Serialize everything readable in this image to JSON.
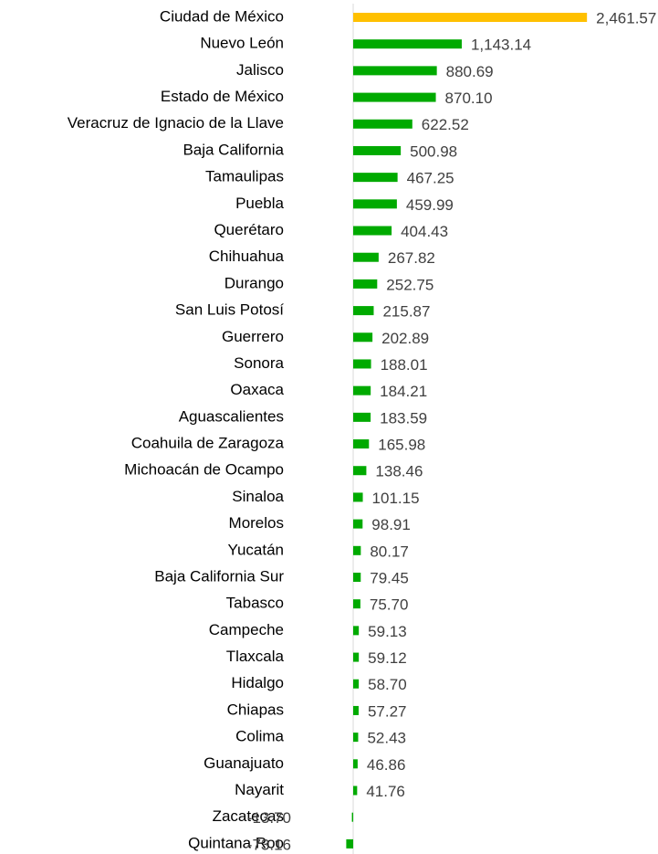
{
  "chart_data": {
    "type": "hbar",
    "categories": [
      "Ciudad de México",
      "Nuevo León",
      "Jalisco",
      "Estado de México",
      "Veracruz de Ignacio de la Llave",
      "Baja California",
      "Tamaulipas",
      "Puebla",
      "Querétaro",
      "Chihuahua",
      "Durango",
      "San Luis Potosí",
      "Guerrero",
      "Sonora",
      "Oaxaca",
      "Aguascalientes",
      "Coahuila de Zaragoza",
      "Michoacán de Ocampo",
      "Sinaloa",
      "Morelos",
      "Yucatán",
      "Baja California Sur",
      "Tabasco",
      "Campeche",
      "Tlaxcala",
      "Hidalgo",
      "Chiapas",
      "Colima",
      "Guanajuato",
      "Nayarit",
      "Zacatecas",
      "Quintana Roo"
    ],
    "values": [
      2461.57,
      1143.14,
      880.69,
      870.1,
      622.52,
      500.98,
      467.25,
      459.99,
      404.43,
      267.82,
      252.75,
      215.87,
      202.89,
      188.01,
      184.21,
      183.59,
      165.98,
      138.46,
      101.15,
      98.91,
      80.17,
      79.45,
      75.7,
      59.13,
      59.12,
      58.7,
      57.27,
      52.43,
      46.86,
      41.76,
      -13.7,
      -73.16
    ],
    "value_labels": [
      "2,461.57",
      "1,143.14",
      "880.69",
      "870.10",
      "622.52",
      "500.98",
      "467.25",
      "459.99",
      "404.43",
      "267.82",
      "252.75",
      "215.87",
      "202.89",
      "188.01",
      "184.21",
      "183.59",
      "165.98",
      "138.46",
      "101.15",
      "98.91",
      "80.17",
      "79.45",
      "75.70",
      "59.13",
      "59.12",
      "58.70",
      "57.27",
      "52.43",
      "46.86",
      "41.76",
      "-13.70",
      "-73.16"
    ],
    "colors": [
      "#ffc000",
      "#00aa00",
      "#00aa00",
      "#00aa00",
      "#00aa00",
      "#00aa00",
      "#00aa00",
      "#00aa00",
      "#00aa00",
      "#00aa00",
      "#00aa00",
      "#00aa00",
      "#00aa00",
      "#00aa00",
      "#00aa00",
      "#00aa00",
      "#00aa00",
      "#00aa00",
      "#00aa00",
      "#00aa00",
      "#00aa00",
      "#00aa00",
      "#00aa00",
      "#00aa00",
      "#00aa00",
      "#00aa00",
      "#00aa00",
      "#00aa00",
      "#00aa00",
      "#00aa00",
      "#00aa00",
      "#00aa00"
    ],
    "negative_label_color": "#ff0000",
    "xlim": [
      -100,
      3100
    ]
  }
}
